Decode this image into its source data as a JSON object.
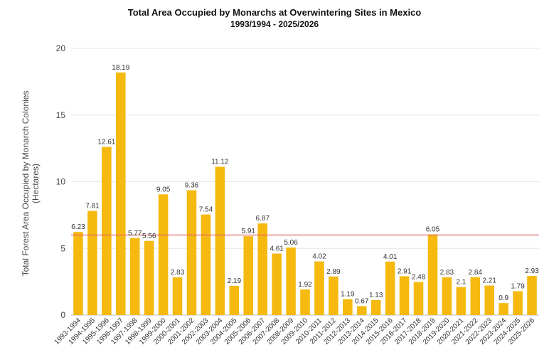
{
  "chart_data": {
    "type": "bar",
    "title": "Total Area Occupied by Monarchs at Overwintering Sites in Mexico",
    "subtitle": "1993/1994 - 2025/2026",
    "ylabel_line1": "Total Forest Area Occupied by Monarch Colonies",
    "ylabel_line2": "(Hectares)",
    "xlabel": "",
    "ylim": [
      0,
      20
    ],
    "yticks": [
      0,
      5,
      10,
      15,
      20
    ],
    "grid": true,
    "reference_line": 6.0,
    "colors": {
      "bar": "#F5B90F",
      "reference_line": "#E46A6A",
      "grid": "#E6E6E6"
    },
    "categories": [
      "1993-1994",
      "1994-1995",
      "1995-1996",
      "1996-1997",
      "1997-1998",
      "1998-1999",
      "1999-2000",
      "2000-2001",
      "2001-2002",
      "2002-2003",
      "2003-2004",
      "2004-2005",
      "2005-2006",
      "2006-2007",
      "2007-2008",
      "2008-2009",
      "2009-2010",
      "2010-2011",
      "2011-2012",
      "2012-2013",
      "2013-2014",
      "2014-2015",
      "2015-2016",
      "2016-2017",
      "2017-2018",
      "2018-2019",
      "2019-2020",
      "2020-2021",
      "2021-2022",
      "2022-2023",
      "2023-2024",
      "2024-2025",
      "2025-2026"
    ],
    "values": [
      6.23,
      7.81,
      12.61,
      18.19,
      5.77,
      5.56,
      9.05,
      2.83,
      9.36,
      7.54,
      11.12,
      2.19,
      5.91,
      6.87,
      4.61,
      5.06,
      1.92,
      4.02,
      2.89,
      1.19,
      0.67,
      1.13,
      4.01,
      2.91,
      2.48,
      6.05,
      2.83,
      2.1,
      2.84,
      2.21,
      0.9,
      1.79,
      2.93
    ],
    "data_labels": [
      "6.23",
      "7.81",
      "12.61",
      "18.19",
      "5.77",
      "5.56",
      "9.05",
      "2.83",
      "9.36",
      "7.54",
      "11.12",
      "2.19",
      "5.91",
      "6.87",
      "4.61",
      "5.06",
      "1.92",
      "4.02",
      "2.89",
      "1.19",
      "0.67",
      "1.13",
      "4.01",
      "2.91",
      "2.48",
      "6.05",
      "2.83",
      "2.1",
      "2.84",
      "2.21",
      "0.9",
      "1.79",
      "2.93"
    ]
  }
}
